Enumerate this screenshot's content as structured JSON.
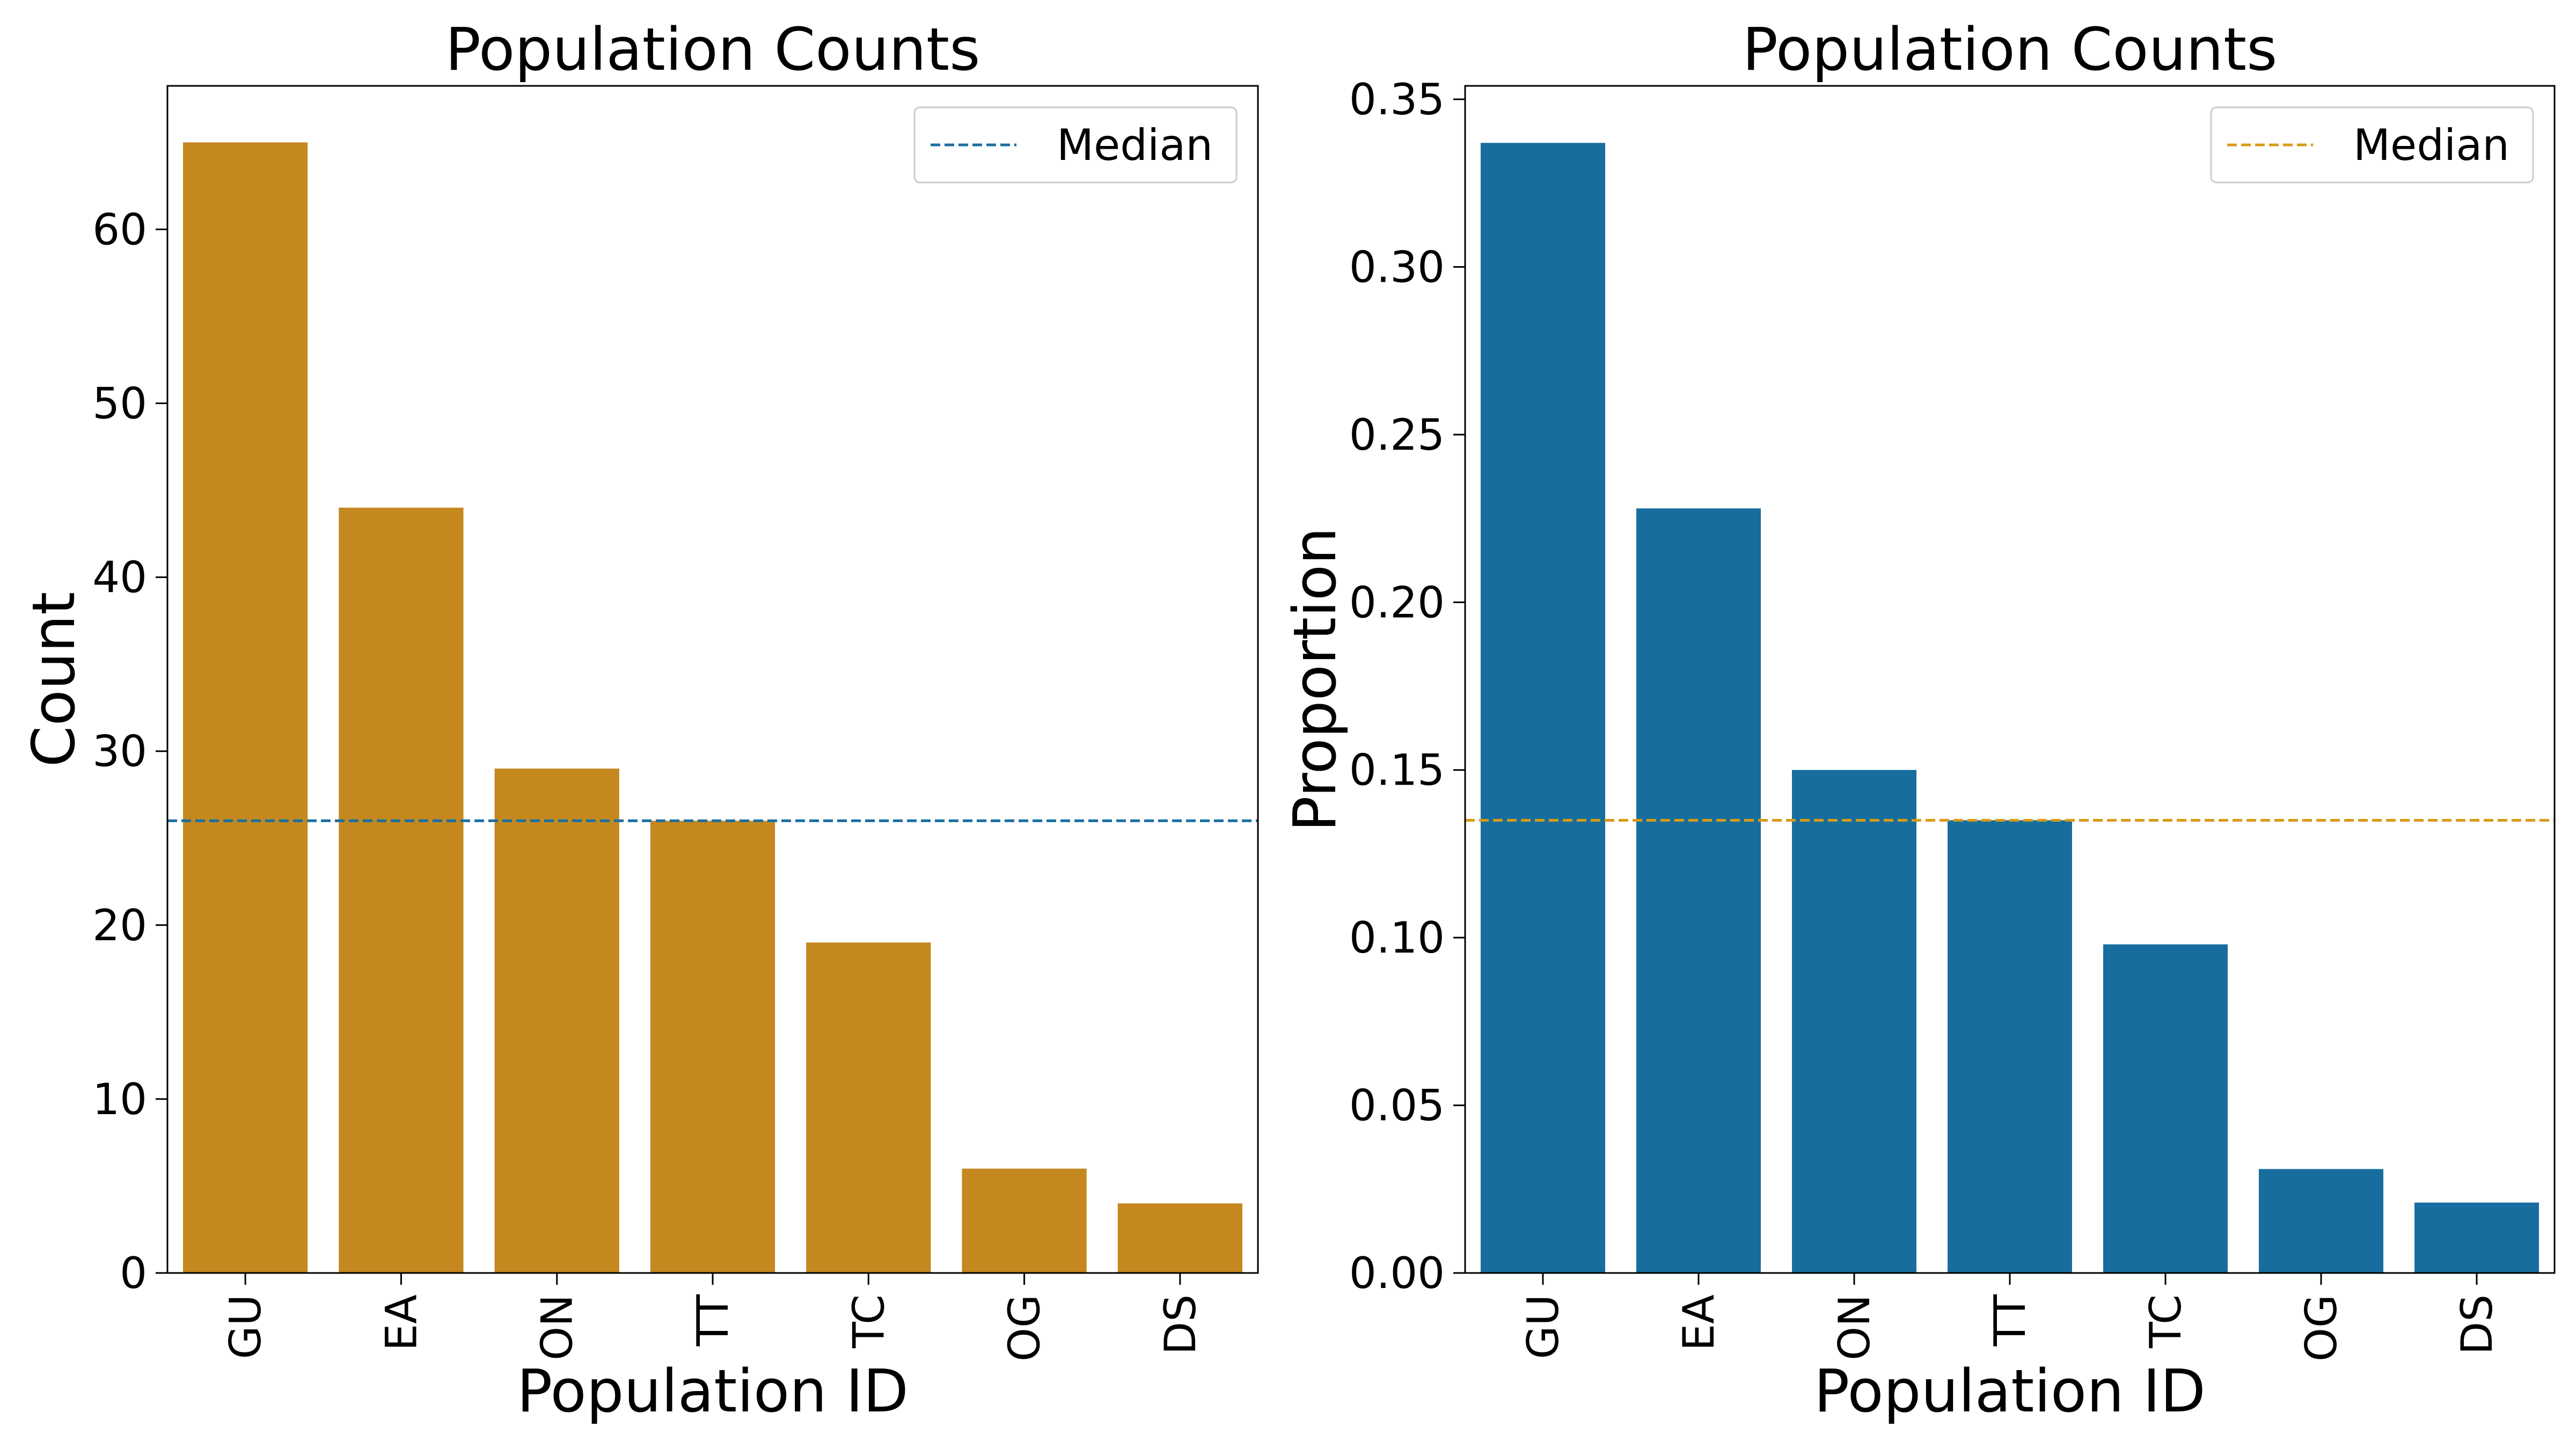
{
  "chart_data": [
    {
      "type": "bar",
      "title": "Population Counts",
      "xlabel": "Population ID",
      "ylabel": "Count",
      "categories": [
        "GU",
        "EA",
        "ON",
        "TT",
        "TC",
        "OG",
        "DS"
      ],
      "values": [
        65,
        44,
        29,
        26,
        19,
        6,
        4
      ],
      "ylim": [
        0,
        68.25
      ],
      "yticks": [
        0,
        10,
        20,
        30,
        40,
        50,
        60
      ],
      "ytick_labels": [
        "0",
        "10",
        "20",
        "30",
        "40",
        "50",
        "60"
      ],
      "bar_color": "#c4881f",
      "median": 26,
      "median_color": "#1a6fa0",
      "legend": {
        "label": "Median",
        "placement": "top-right"
      },
      "grid": false
    },
    {
      "type": "bar",
      "title": "Population Counts",
      "xlabel": "Population ID",
      "ylabel": "Proportion",
      "categories": [
        "GU",
        "EA",
        "ON",
        "TT",
        "TC",
        "OG",
        "DS"
      ],
      "values": [
        0.337,
        0.228,
        0.15,
        0.135,
        0.098,
        0.031,
        0.021
      ],
      "ylim": [
        0,
        0.354
      ],
      "yticks": [
        0,
        0.05,
        0.1,
        0.15,
        0.2,
        0.25,
        0.3,
        0.35
      ],
      "ytick_labels": [
        "0.00",
        "0.05",
        "0.10",
        "0.15",
        "0.20",
        "0.25",
        "0.30",
        "0.35"
      ],
      "bar_color": "#176e9e",
      "median": 0.135,
      "median_color": "#d99a16",
      "legend": {
        "label": "Median",
        "placement": "top-right"
      },
      "grid": false
    }
  ]
}
